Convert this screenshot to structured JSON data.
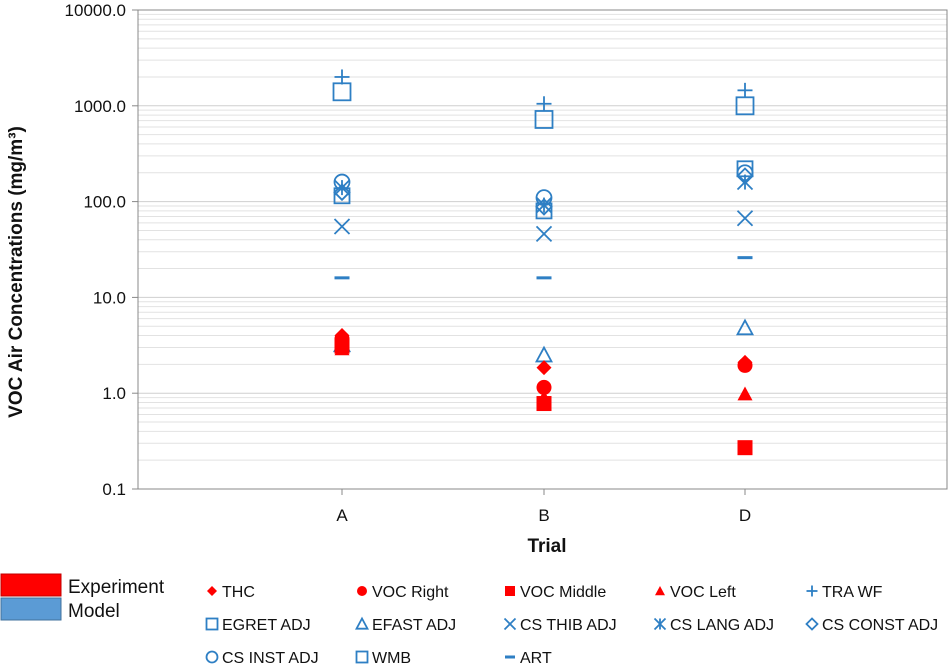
{
  "chart_data": {
    "type": "scatter",
    "y_scale": "log",
    "ylim": [
      0.1,
      10000
    ],
    "ylabel": "VOC Air Concentrations (mg/m³)",
    "xlabel": "Trial",
    "categories": [
      "A",
      "B",
      "D"
    ],
    "y_ticks": [
      "0.1",
      "1.0",
      "10.0",
      "100.0",
      "1000.0",
      "10000.0"
    ],
    "group_legend": [
      {
        "name": "Experiment",
        "color": "#ff0000"
      },
      {
        "name": "Model",
        "color": "#5b9bd5"
      }
    ],
    "series": [
      {
        "name": "THC",
        "group": "Experiment",
        "marker": "diamond",
        "values": [
          4.0,
          1.85,
          2.1
        ]
      },
      {
        "name": "VOC Right",
        "group": "Experiment",
        "marker": "circle",
        "values": [
          3.7,
          1.15,
          1.95
        ]
      },
      {
        "name": "VOC Middle",
        "group": "Experiment",
        "marker": "square",
        "values": [
          3.1,
          0.78,
          0.27
        ]
      },
      {
        "name": "VOC Left",
        "group": "Experiment",
        "marker": "triangle",
        "values": [
          2.9,
          0.9,
          0.98
        ]
      },
      {
        "name": "TRA WF",
        "group": "Model",
        "marker": "plus",
        "values": [
          2000,
          1050,
          1450
        ]
      },
      {
        "name": "EGRET ADJ",
        "group": "Model",
        "marker": "square-open",
        "values": [
          115,
          80,
          220
        ]
      },
      {
        "name": "EFAST ADJ",
        "group": "Model",
        "marker": "triangle-open",
        "values": [
          3.2,
          2.5,
          4.8
        ]
      },
      {
        "name": "CS THIB ADJ",
        "group": "Model",
        "marker": "x",
        "values": [
          55,
          46,
          67
        ]
      },
      {
        "name": "CS LANG ADJ",
        "group": "Model",
        "marker": "star",
        "values": [
          140,
          92,
          160
        ]
      },
      {
        "name": "CS CONST ADJ",
        "group": "Model",
        "marker": "diamond-open",
        "values": [
          125,
          88,
          185
        ]
      },
      {
        "name": "CS INST ADJ",
        "group": "Model",
        "marker": "circle-open",
        "values": [
          160,
          110,
          200
        ]
      },
      {
        "name": "WMB",
        "group": "Model",
        "marker": "square-open",
        "values": [
          1400,
          720,
          1000
        ]
      },
      {
        "name": "ART",
        "group": "Model",
        "marker": "dash",
        "values": [
          16,
          16,
          26
        ]
      }
    ]
  }
}
